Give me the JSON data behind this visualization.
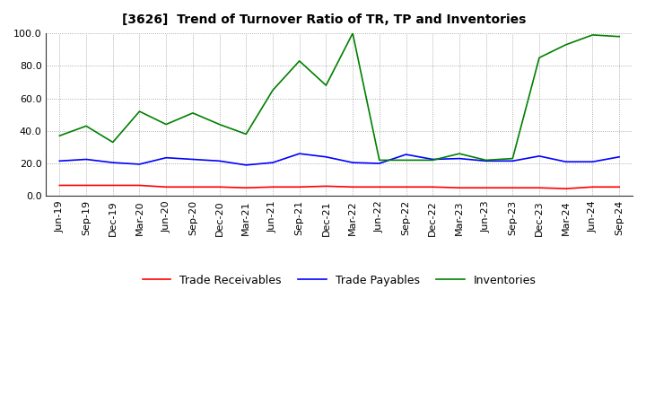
{
  "title": "[3626]  Trend of Turnover Ratio of TR, TP and Inventories",
  "x_labels": [
    "Jun-19",
    "Sep-19",
    "Dec-19",
    "Mar-20",
    "Jun-20",
    "Sep-20",
    "Dec-20",
    "Mar-21",
    "Jun-21",
    "Sep-21",
    "Dec-21",
    "Mar-22",
    "Jun-22",
    "Sep-22",
    "Dec-22",
    "Mar-23",
    "Jun-23",
    "Sep-23",
    "Dec-23",
    "Mar-24",
    "Jun-24",
    "Sep-24"
  ],
  "trade_receivables": [
    6.5,
    6.5,
    6.5,
    6.5,
    5.5,
    5.5,
    5.5,
    5.0,
    5.5,
    5.5,
    6.0,
    5.5,
    5.5,
    5.5,
    5.5,
    5.0,
    5.0,
    5.0,
    5.0,
    4.5,
    5.5,
    5.5
  ],
  "trade_payables": [
    21.5,
    22.5,
    20.5,
    19.5,
    23.5,
    22.5,
    21.5,
    19.0,
    20.5,
    26.0,
    24.0,
    20.5,
    20.0,
    25.5,
    22.5,
    23.0,
    21.5,
    21.5,
    24.5,
    21.0,
    21.0,
    24.0
  ],
  "inventories": [
    37.0,
    43.0,
    33.0,
    52.0,
    44.0,
    51.0,
    44.0,
    38.0,
    65.0,
    83.0,
    68.0,
    100.0,
    22.0,
    22.0,
    22.0,
    26.0,
    22.0,
    23.0,
    85.0,
    93.0,
    99.0,
    98.0
  ],
  "ylim": [
    0.0,
    100.0
  ],
  "yticks": [
    0.0,
    20.0,
    40.0,
    60.0,
    80.0,
    100.0
  ],
  "color_tr": "#ff0000",
  "color_tp": "#0000ff",
  "color_inv": "#008000",
  "legend_labels": [
    "Trade Receivables",
    "Trade Payables",
    "Inventories"
  ],
  "background_color": "#ffffff",
  "grid_color": "#808080"
}
